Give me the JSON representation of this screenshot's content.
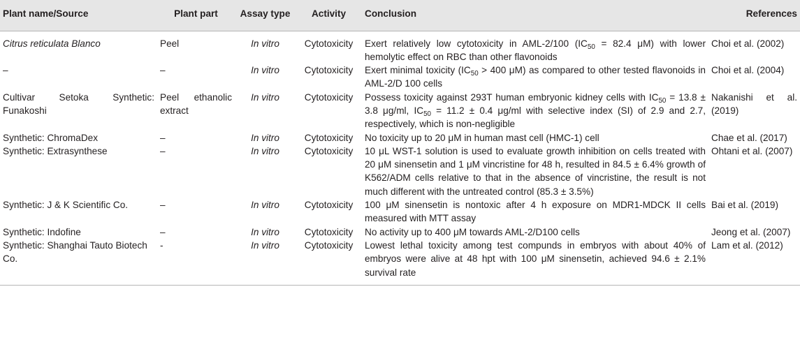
{
  "headers": {
    "plant": "Plant name/Source",
    "part": "Plant part",
    "assay": "Assay type",
    "activity": "Activity",
    "conclusion": "Conclusion",
    "references": "References"
  },
  "rows": [
    {
      "plant": "Citrus reticulata Blanco",
      "part": "Peel",
      "assay": "In vitro",
      "activity": "Cytotoxicity",
      "conclusion": {
        "a": "Exert relatively low cytotoxicity in AML-2/100 (IC",
        "sub": "50",
        "b": " = 82.4 μM) with lower hemolytic effect on RBC than other flavonoids"
      },
      "ref": "Choi et al. (2002)"
    },
    {
      "plant": "–",
      "part": "–",
      "assay": "In vitro",
      "activity": "Cytotoxicity",
      "conclusion": {
        "a": "Exert minimal toxicity (IC",
        "sub": "50",
        "b": " > 400 μM) as compared to other tested flavonoids in AML-2/D 100 cells"
      },
      "ref": "Choi et al. (2004)"
    },
    {
      "plant": "Cultivar Setoka Synthetic: Funakoshi",
      "part": "Peel ethanolic extract",
      "assay": "In vitro",
      "activity": "Cytotoxicity",
      "conclusion": {
        "a": "Possess toxicity against 293T human embryonic kidney cells with IC",
        "sub": "50",
        "b": " = 13.8 ± 3.8 μg/ml, IC",
        "sub2": "50",
        "c": " = 11.2 ± 0.4 μg/ml with selective index (SI) of 2.9 and 2.7, respectively, which is non-negligible"
      },
      "ref": "Nakanishi et al. (2019)"
    },
    {
      "plant": "Synthetic: ChromaDex",
      "part": "–",
      "assay": "In vitro",
      "activity": "Cytotoxicity",
      "conclusion": {
        "a": "No toxicity up to 20 μM in human mast cell (HMC-1) cell"
      },
      "ref": "Chae et al. (2017)"
    },
    {
      "plant": "Synthetic: Extrasynthese",
      "part": "–",
      "assay": "In vitro",
      "activity": "Cytotoxicity",
      "conclusion": {
        "a": "10 μL WST-1 solution is used to evaluate growth inhibition on cells treated with 20 μM sinensetin and 1 μM vincristine for 48 h, resulted in 84.5 ± 6.4% growth of K562/ADM cells relative to that in the absence of vincristine, the result is not much different with the untreated control (85.3 ± 3.5%)"
      },
      "ref": "Ohtani et al. (2007)"
    },
    {
      "plant": "Synthetic: J & K Scientific Co.",
      "part": "–",
      "assay": "In vitro",
      "activity": "Cytotoxicity",
      "conclusion": {
        "a": "100 μM sinensetin is nontoxic after 4 h exposure on MDR1-MDCK II cells measured with MTT assay"
      },
      "ref": "Bai et al. (2019)"
    },
    {
      "plant": "Synthetic: Indofine",
      "part": "–",
      "assay": "In vitro",
      "activity": "Cytotoxicity",
      "conclusion": {
        "a": "No activity up to 400 μM towards AML-2/D100 cells"
      },
      "ref": "Jeong et al. (2007)"
    },
    {
      "plant": "Synthetic: Shanghai Tauto Biotech Co.",
      "part": "-",
      "assay": "In vitro",
      "activity": "Cytotoxicity",
      "conclusion": {
        "a": "Lowest lethal toxicity among test compunds in embryos with about 40% of embryos were alive at 48 hpt with 100 μM sinensetin, achieved 94.6 ± 2.1% survival rate"
      },
      "ref": "Lam et al. (2012)"
    }
  ]
}
